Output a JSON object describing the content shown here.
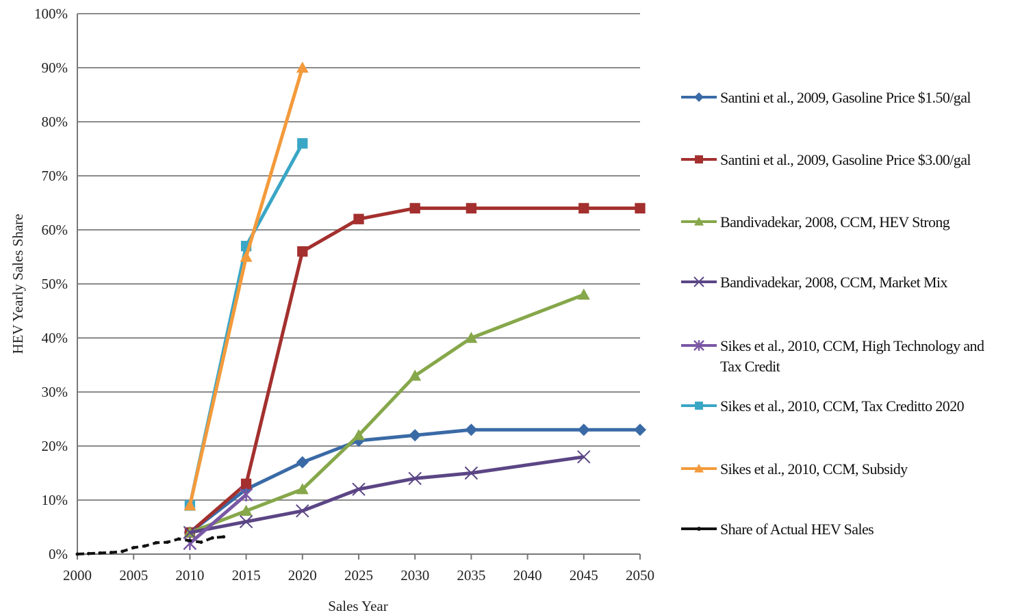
{
  "chart_data": {
    "type": "line",
    "xlabel": "Sales Year",
    "ylabel": "HEV Yearly Sales Share",
    "xlim": [
      2000,
      2050
    ],
    "ylim": [
      0,
      100
    ],
    "x_ticks": [
      2000,
      2005,
      2010,
      2015,
      2020,
      2025,
      2030,
      2035,
      2040,
      2045,
      2050
    ],
    "y_ticks": [
      0,
      10,
      20,
      30,
      40,
      50,
      60,
      70,
      80,
      90,
      100
    ],
    "y_tick_labels": [
      "0%",
      "10%",
      "20%",
      "30%",
      "40%",
      "50%",
      "60%",
      "70%",
      "80%",
      "90%",
      "100%"
    ],
    "grid": "horizontal",
    "legend_position": "right",
    "series": [
      {
        "name": "Santini et al., 2009, Gasoline Price $1.50/gal",
        "color": "#3a6aa6",
        "marker": "diamond",
        "x": [
          2010,
          2015,
          2020,
          2025,
          2030,
          2035,
          2045,
          2050
        ],
        "values": [
          4,
          12,
          17,
          21,
          22,
          23,
          23,
          23
        ]
      },
      {
        "name": "Santini et al., 2009, Gasoline Price $3.00/gal",
        "color": "#a3302e",
        "marker": "square",
        "x": [
          2010,
          2015,
          2020,
          2025,
          2030,
          2035,
          2045,
          2050
        ],
        "values": [
          4,
          13,
          56,
          62,
          64,
          64,
          64,
          64
        ]
      },
      {
        "name": "Bandivadekar, 2008, CCM, HEV Strong",
        "color": "#86a74a",
        "marker": "triangle",
        "x": [
          2010,
          2015,
          2020,
          2025,
          2030,
          2035,
          2045
        ],
        "values": [
          4,
          8,
          12,
          22,
          33,
          40,
          48
        ]
      },
      {
        "name": "Bandivadekar, 2008, CCM, Market Mix",
        "color": "#5b4585",
        "marker": "x",
        "x": [
          2010,
          2015,
          2020,
          2025,
          2030,
          2035,
          2045
        ],
        "values": [
          4,
          6,
          8,
          12,
          14,
          15,
          18
        ]
      },
      {
        "name": "Sikes et al., 2010, CCM, High Technology and Tax Credit",
        "color": "#7a57a5",
        "marker": "star",
        "x": [
          2010,
          2015
        ],
        "values": [
          2,
          11
        ]
      },
      {
        "name": "Sikes et al., 2010, CCM, Tax Creditto 2020",
        "color": "#3aa6c6",
        "marker": "square",
        "x": [
          2010,
          2015,
          2020
        ],
        "values": [
          9,
          57,
          76
        ]
      },
      {
        "name": "Sikes et al., 2010, CCM, Subsidy",
        "color": "#f39a3c",
        "marker": "triangle",
        "x": [
          2010,
          2015,
          2020
        ],
        "values": [
          9,
          55,
          90
        ]
      },
      {
        "name": "Share of Actual HEV Sales",
        "color": "#111111",
        "marker": "dot",
        "x": [
          2000,
          2001,
          2002,
          2003,
          2004,
          2005,
          2006,
          2007,
          2008,
          2009,
          2010,
          2011,
          2012,
          2013
        ],
        "values": [
          0.0,
          0.1,
          0.2,
          0.3,
          0.5,
          1.2,
          1.5,
          2.1,
          2.2,
          2.8,
          2.5,
          2.2,
          3.0,
          3.2
        ]
      }
    ]
  }
}
